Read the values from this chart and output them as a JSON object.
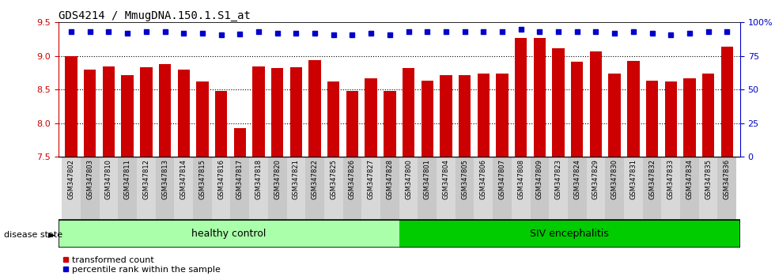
{
  "title": "GDS4214 / MmugDNA.150.1.S1_at",
  "samples": [
    "GSM347802",
    "GSM347803",
    "GSM347810",
    "GSM347811",
    "GSM347812",
    "GSM347813",
    "GSM347814",
    "GSM347815",
    "GSM347816",
    "GSM347817",
    "GSM347818",
    "GSM347820",
    "GSM347821",
    "GSM347822",
    "GSM347825",
    "GSM347826",
    "GSM347827",
    "GSM347828",
    "GSM347800",
    "GSM347801",
    "GSM347804",
    "GSM347805",
    "GSM347806",
    "GSM347807",
    "GSM347808",
    "GSM347809",
    "GSM347823",
    "GSM347824",
    "GSM347829",
    "GSM347830",
    "GSM347831",
    "GSM347832",
    "GSM347833",
    "GSM347834",
    "GSM347835",
    "GSM347836"
  ],
  "bar_values": [
    9.0,
    8.8,
    8.85,
    8.72,
    8.83,
    8.88,
    8.8,
    8.62,
    8.48,
    7.93,
    8.84,
    8.82,
    8.83,
    8.94,
    8.62,
    8.48,
    8.67,
    8.48,
    8.82,
    8.63,
    8.71,
    8.72,
    8.74,
    8.74,
    9.27,
    9.27,
    9.12,
    8.92,
    9.07,
    8.74,
    8.93,
    8.63,
    8.62,
    8.67,
    8.74,
    9.14
  ],
  "percentile_values": [
    93,
    93,
    93,
    92,
    93,
    93,
    92,
    92,
    91,
    91.5,
    93,
    92,
    92,
    92,
    91,
    91,
    92,
    91,
    93,
    93,
    93,
    93,
    93,
    93,
    95,
    93,
    93,
    93,
    93,
    92,
    93,
    92,
    91,
    92,
    93,
    93
  ],
  "n_healthy": 18,
  "ylim_left": [
    7.5,
    9.5
  ],
  "ylim_right": [
    0,
    100
  ],
  "yticks_left": [
    7.5,
    8.0,
    8.5,
    9.0,
    9.5
  ],
  "yticks_right": [
    0,
    25,
    50,
    75,
    100
  ],
  "bar_color": "#CC0000",
  "percentile_color": "#0000CC",
  "healthy_color": "#AAFFAA",
  "siv_color": "#00CC00",
  "tick_bg_light": "#D8D8D8",
  "tick_bg_dark": "#C8C8C8",
  "legend_bar_label": "transformed count",
  "legend_pct_label": "percentile rank within the sample",
  "label_healthy": "healthy control",
  "label_siv": "SIV encephalitis",
  "disease_state_label": "disease state"
}
